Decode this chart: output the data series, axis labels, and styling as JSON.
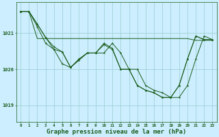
{
  "background_color": "#cceeff",
  "grid_color": "#99cccc",
  "line_color": "#1a5c1a",
  "xlabel": "Graphe pression niveau de la mer (hPa)",
  "xlabel_fontsize": 6.5,
  "ylabel_ticks": [
    1019,
    1020,
    1021
  ],
  "xlim": [
    -0.5,
    23.5
  ],
  "ylim": [
    1018.55,
    1021.85
  ],
  "s_flat": [
    1021.6,
    1021.6,
    1020.85,
    1020.85,
    1020.85,
    1020.85,
    1020.85,
    1020.85,
    1020.85,
    1020.85,
    1020.85,
    1020.85,
    1020.85,
    1020.85,
    1020.85,
    1020.85,
    1020.85,
    1020.85,
    1020.85,
    1020.85,
    1020.85,
    1020.8,
    1020.8,
    1020.8
  ],
  "s1": [
    1021.6,
    1021.6,
    1021.25,
    1020.88,
    1020.62,
    1020.48,
    1020.05,
    1020.28,
    1020.45,
    1020.45,
    1020.68,
    1020.55,
    1020.0,
    1020.0,
    1019.55,
    1019.42,
    1019.35,
    1019.22,
    1019.22,
    1019.55,
    1020.28,
    1020.92,
    1020.82,
    1020.82
  ],
  "s2": [
    1021.6,
    1021.6,
    1021.25,
    1020.88,
    1020.55,
    1020.48,
    1020.05,
    1020.28,
    1020.45,
    1020.45,
    1020.45,
    1020.72,
    1020.45,
    1020.0,
    1020.0,
    1019.55,
    1019.42,
    1019.35,
    1019.22,
    1019.22,
    1019.55,
    1020.28,
    1020.92,
    1020.82
  ],
  "s3": [
    1021.6,
    1021.6,
    1021.18,
    1020.6,
    1020.42,
    1019.98,
    1020.22,
    1020.45,
    1020.45,
    1020.45,
    1020.45,
    1020.45,
    1020.45,
    1019.55,
    1019.42,
    1019.35,
    1019.22,
    1019.22,
    1019.22,
    1019.55,
    1020.28,
    1020.92,
    1020.82,
    1020.82
  ]
}
